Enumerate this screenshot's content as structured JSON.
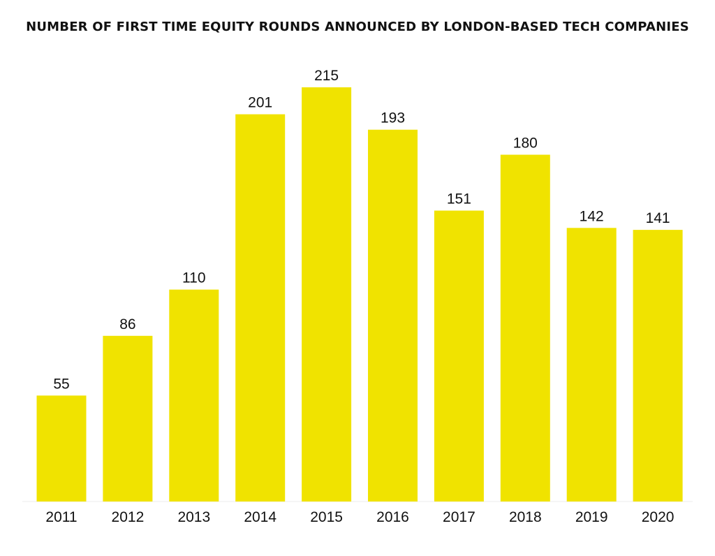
{
  "chart_data": {
    "type": "bar",
    "title": "NUMBER OF FIRST TIME EQUITY ROUNDS ANNOUNCED BY LONDON-BASED TECH COMPANIES",
    "categories": [
      "2011",
      "2012",
      "2013",
      "2014",
      "2015",
      "2016",
      "2017",
      "2018",
      "2019",
      "2020"
    ],
    "values": [
      55,
      86,
      110,
      201,
      215,
      193,
      151,
      180,
      142,
      141
    ],
    "xlabel": "",
    "ylabel": "",
    "ylim": [
      0,
      220
    ],
    "grid": false,
    "legend": "none",
    "data_labels": true,
    "bar_color": "#f0e300",
    "text_color": "#111111",
    "axis_color": "#eeeeee"
  }
}
